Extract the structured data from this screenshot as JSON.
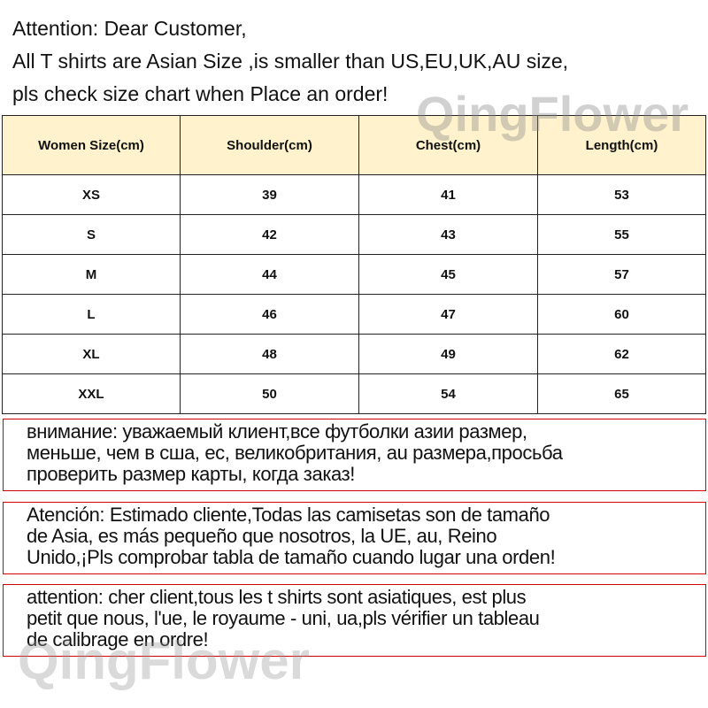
{
  "intro": [
    "Attention: Dear Customer,",
    "All T shirts are  Asian Size ,is smaller than US,EU,UK,AU size,",
    "pls check size chart when Place an order!"
  ],
  "table": {
    "headers": [
      "Women Size(cm)",
      "Shoulder(cm)",
      "Chest(cm)",
      "Length(cm)"
    ],
    "rows": [
      [
        "XS",
        "39",
        "41",
        "53"
      ],
      [
        "S",
        "42",
        "43",
        "55"
      ],
      [
        "M",
        "44",
        "45",
        "57"
      ],
      [
        "L",
        "46",
        "47",
        "60"
      ],
      [
        "XL",
        "48",
        "49",
        "62"
      ],
      [
        "XXL",
        "50",
        "54",
        "65"
      ]
    ]
  },
  "notices": [
    [
      "внимание: уважаемый клиент,все футболки азии размер,",
      "меньше, чем в сша, ес, великобритания, au размера,просьба",
      "проверить размер карты, когда заказ!"
    ],
    [
      "Atención: Estimado cliente,Todas las camisetas son de tamaño",
      "de Asia, es más pequeño que nosotros, la UE, au, Reino",
      "Unido,¡Pls comprobar tabla de tamaño cuando lugar una orden!"
    ],
    [
      "attention: cher client,tous les t shirts sont asiatiques, est plus",
      "petit que nous, l'ue, le royaume - uni, ua,pls vérifier un tableau",
      "de calibrage en ordre!"
    ]
  ],
  "watermark": "QingFlower",
  "colors": {
    "header_bg": "#fff2cc",
    "notice_border": "#d40000"
  }
}
